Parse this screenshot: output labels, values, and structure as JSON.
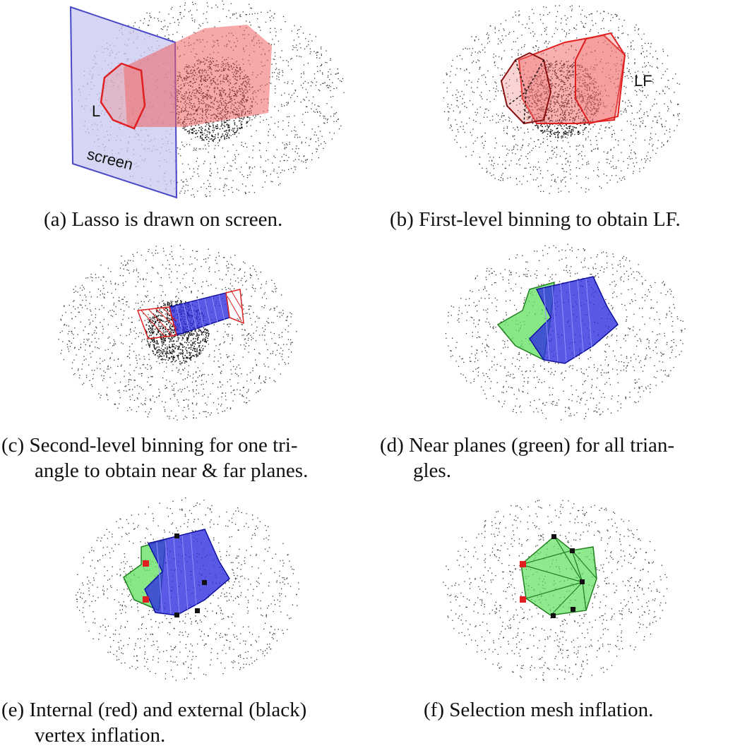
{
  "colors": {
    "screen_fill": "#c8c8f0",
    "screen_stroke": "#4848c8",
    "lasso_red": "#e02020",
    "frustum_fill": "#f06060",
    "blue_fill": "#3030e0",
    "green_fill": "#60e060",
    "point": "#222222"
  },
  "panels": [
    {
      "id": "a",
      "labels": {
        "lasso": "L",
        "screen": "screen"
      },
      "caption": {
        "tag": "(a)",
        "line1": "Lasso is drawn on screen.",
        "line2": ""
      }
    },
    {
      "id": "b",
      "labels": {
        "frustum": "LF"
      },
      "caption": {
        "tag": "(b)",
        "line1": "First-level binning to obtain LF.",
        "line2": ""
      }
    },
    {
      "id": "c",
      "caption": {
        "tag": "(c)",
        "line1": "Second-level binning for one tri-",
        "line2": "angle to obtain near & far planes."
      }
    },
    {
      "id": "d",
      "caption": {
        "tag": "(d)",
        "line1": "Near planes (green) for all trian-",
        "line2": "gles."
      }
    },
    {
      "id": "e",
      "caption": {
        "tag": "(e)",
        "line1": "Internal (red) and external (black)",
        "line2": "vertex inflation."
      }
    },
    {
      "id": "f",
      "caption": {
        "tag": "(f)",
        "line1": "Selection mesh inflation.",
        "line2": ""
      }
    }
  ]
}
